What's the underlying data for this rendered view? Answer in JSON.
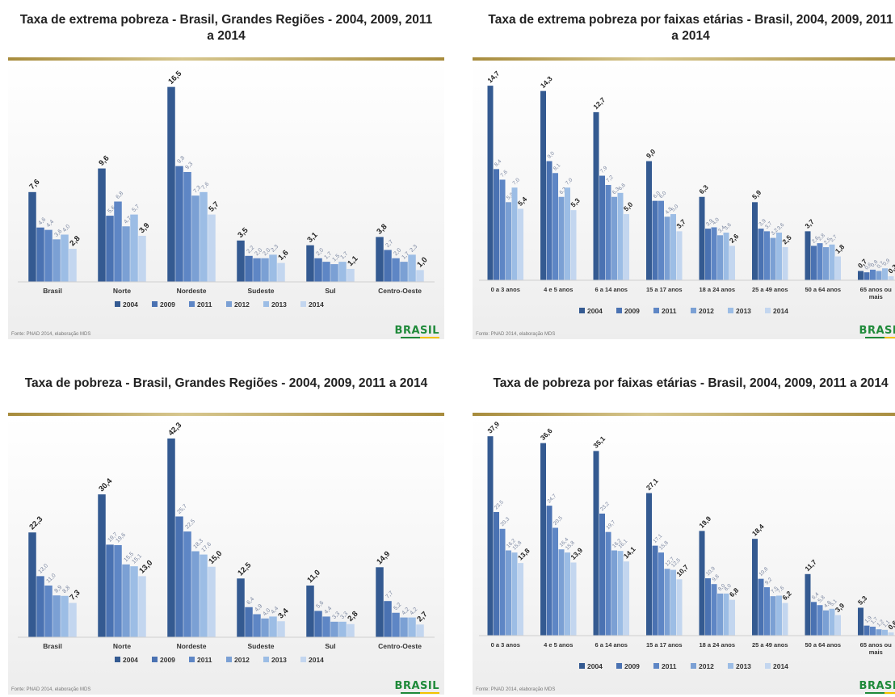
{
  "colors": [
    "#345a91",
    "#4a72b2",
    "#5e86c5",
    "#7ba0d4",
    "#9cbde5",
    "#c3d6ef"
  ],
  "panels": [
    {
      "title": "Taxa de extrema pobreza - Brasil, Grandes Regiões - 2004, 2009, 2011 a 2014",
      "source": "Fonte: PNAD 2014, elaboração MDS",
      "logo": "BRASIL"
    },
    {
      "title": "Taxa de extrema pobreza por faixas etárias - Brasil, 2004, 2009, 2011 a 2014",
      "source": "Fonte: PNAD 2014, elaboração MDS",
      "logo": "BRASIL"
    },
    {
      "title": "Taxa de pobreza - Brasil, Grandes Regiões - 2004, 2009, 2011 a 2014",
      "source": "Fonte: PNAD 2014, elaboração MDS",
      "logo": "BRASIL"
    },
    {
      "title": "Taxa de pobreza por faixas etárias - Brasil, 2004, 2009, 2011 a 2014",
      "source": "Fonte: PNAD 2014, elaboração MDS",
      "logo": "BRASIL"
    }
  ],
  "chart_data": [
    {
      "type": "bar",
      "title": "Taxa de extrema pobreza - Brasil, Grandes Regiões - 2004, 2009, 2011 a 2014",
      "categories": [
        "Brasil",
        "Norte",
        "Nordeste",
        "Sudeste",
        "Sul",
        "Centro-Oeste"
      ],
      "series": [
        {
          "name": "2004",
          "values": [
            7.6,
            9.6,
            16.5,
            3.5,
            3.1,
            3.8
          ]
        },
        {
          "name": "2009",
          "values": [
            4.6,
            5.6,
            9.8,
            2.2,
            2.0,
            2.7
          ]
        },
        {
          "name": "2011",
          "values": [
            4.4,
            6.8,
            9.3,
            2.0,
            1.7,
            2.0
          ]
        },
        {
          "name": "2012",
          "values": [
            3.6,
            4.7,
            7.3,
            2.0,
            1.5,
            1.7
          ]
        },
        {
          "name": "2013",
          "values": [
            4.0,
            5.7,
            7.6,
            2.3,
            1.7,
            2.3
          ]
        },
        {
          "name": "2014",
          "values": [
            2.8,
            3.9,
            5.7,
            1.6,
            1.1,
            1.0
          ]
        }
      ],
      "ylim": [
        0,
        17.5
      ],
      "legend": "bottom"
    },
    {
      "type": "bar",
      "title": "Taxa de extrema pobreza por faixas etárias - Brasil, 2004, 2009, 2011 a 2014",
      "categories": [
        "0 a 3 anos",
        "4 e 5 anos",
        "6 a 14 anos",
        "15 a 17 anos",
        "18 a 24 anos",
        "25 a 49 anos",
        "50 a 64 anos",
        "65 anos ou mais"
      ],
      "series": [
        {
          "name": "2004",
          "values": [
            14.7,
            14.3,
            12.7,
            9.0,
            6.3,
            5.9,
            3.7,
            0.7
          ]
        },
        {
          "name": "2009",
          "values": [
            8.4,
            9.0,
            7.9,
            6.0,
            3.9,
            3.9,
            2.6,
            0.6
          ]
        },
        {
          "name": "2011",
          "values": [
            7.6,
            8.1,
            7.2,
            6.0,
            4.0,
            3.7,
            2.8,
            0.8
          ]
        },
        {
          "name": "2012",
          "values": [
            5.9,
            6.3,
            6.3,
            4.8,
            3.4,
            3.2,
            2.5,
            0.7
          ]
        },
        {
          "name": "2013",
          "values": [
            7.0,
            7.0,
            6.6,
            5.0,
            3.6,
            3.6,
            2.7,
            0.9
          ]
        },
        {
          "name": "2014",
          "values": [
            5.4,
            5.3,
            5.0,
            3.7,
            2.6,
            2.5,
            1.8,
            0.3
          ]
        }
      ],
      "ylim": [
        0,
        15.5
      ],
      "legend": "bottom"
    },
    {
      "type": "bar",
      "title": "Taxa de pobreza - Brasil, Grandes Regiões - 2004, 2009, 2011 a 2014",
      "categories": [
        "Brasil",
        "Norte",
        "Nordeste",
        "Sudeste",
        "Sul",
        "Centro-Oeste"
      ],
      "series": [
        {
          "name": "2004",
          "values": [
            22.3,
            30.4,
            42.3,
            12.5,
            11.0,
            14.9
          ]
        },
        {
          "name": "2009",
          "values": [
            13.0,
            19.7,
            25.7,
            6.4,
            5.6,
            7.7
          ]
        },
        {
          "name": "2011",
          "values": [
            11.0,
            19.6,
            22.5,
            4.9,
            4.4,
            5.2
          ]
        },
        {
          "name": "2012",
          "values": [
            8.9,
            15.5,
            18.3,
            4.0,
            3.3,
            4.2
          ]
        },
        {
          "name": "2013",
          "values": [
            8.8,
            15.1,
            17.6,
            4.4,
            3.3,
            4.2
          ]
        },
        {
          "name": "2014",
          "values": [
            7.3,
            13.0,
            15.0,
            3.4,
            2.8,
            2.7
          ]
        }
      ],
      "ylim": [
        0,
        44
      ],
      "legend": "bottom"
    },
    {
      "type": "bar",
      "title": "Taxa de pobreza por faixas etárias - Brasil, 2004, 2009, 2011 a 2014",
      "categories": [
        "0 a 3 anos",
        "4 e 5 anos",
        "6 a 14 anos",
        "15 a 17 anos",
        "18 a 24 anos",
        "25 a 49 anos",
        "50 a 64 anos",
        "65 anos ou mais"
      ],
      "series": [
        {
          "name": "2004",
          "values": [
            37.9,
            36.6,
            35.1,
            27.1,
            19.9,
            18.4,
            11.7,
            5.3
          ]
        },
        {
          "name": "2009",
          "values": [
            23.5,
            24.7,
            23.2,
            17.1,
            10.9,
            10.8,
            6.4,
            1.9
          ]
        },
        {
          "name": "2011",
          "values": [
            20.3,
            20.5,
            19.7,
            15.8,
            9.8,
            9.2,
            5.8,
            1.7
          ]
        },
        {
          "name": "2012",
          "values": [
            16.2,
            16.4,
            16.2,
            12.7,
            8.0,
            7.5,
            4.8,
            1.2
          ]
        },
        {
          "name": "2013",
          "values": [
            15.8,
            15.8,
            16.1,
            12.5,
            8.0,
            7.6,
            5.1,
            1.1
          ]
        },
        {
          "name": "2014",
          "values": [
            13.8,
            13.9,
            14.1,
            10.7,
            6.8,
            6.2,
            3.9,
            0.6
          ]
        }
      ],
      "ylim": [
        0,
        39
      ],
      "legend": "bottom"
    }
  ]
}
